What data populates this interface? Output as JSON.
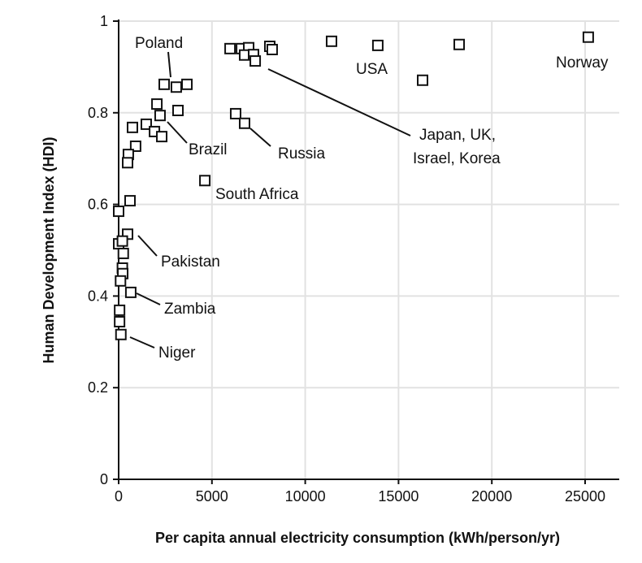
{
  "chart_data": {
    "type": "scatter",
    "title": "",
    "xlabel": "Per capita annual electricity consumption (kWh/person/yr)",
    "ylabel": "Human Development Index (HDI)",
    "xlim": [
      0,
      27000
    ],
    "ylim": [
      0,
      1
    ],
    "xticks": [
      "0",
      "5000",
      "10000",
      "15000",
      "20000",
      "25000"
    ],
    "yticks": [
      "0",
      "0.2",
      "0.4",
      "0.6",
      "0.8",
      "1"
    ],
    "grid": true,
    "marker": "open-square",
    "points": [
      [
        2440,
        0.862
      ],
      [
        3090,
        0.856
      ],
      [
        3660,
        0.862
      ],
      [
        2050,
        0.819
      ],
      [
        3180,
        0.805
      ],
      [
        2220,
        0.794
      ],
      [
        740,
        0.768
      ],
      [
        1480,
        0.775
      ],
      [
        1920,
        0.759
      ],
      [
        2310,
        0.748
      ],
      [
        910,
        0.727
      ],
      [
        520,
        0.709
      ],
      [
        480,
        0.691
      ],
      [
        610,
        0.608
      ],
      [
        0,
        0.585
      ],
      [
        480,
        0.535
      ],
      [
        0,
        0.514
      ],
      [
        200,
        0.52
      ],
      [
        250,
        0.493
      ],
      [
        200,
        0.461
      ],
      [
        220,
        0.449
      ],
      [
        100,
        0.433
      ],
      [
        650,
        0.408
      ],
      [
        50,
        0.369
      ],
      [
        50,
        0.344
      ],
      [
        120,
        0.316
      ],
      [
        5970,
        0.94
      ],
      [
        6580,
        0.94
      ],
      [
        6970,
        0.942
      ],
      [
        6750,
        0.926
      ],
      [
        7230,
        0.927
      ],
      [
        7320,
        0.913
      ],
      [
        8100,
        0.945
      ],
      [
        8230,
        0.938
      ],
      [
        6270,
        0.798
      ],
      [
        6750,
        0.777
      ],
      [
        4620,
        0.652
      ],
      [
        11410,
        0.956
      ],
      [
        13890,
        0.947
      ],
      [
        16290,
        0.871
      ],
      [
        18250,
        0.949
      ],
      [
        25170,
        0.965
      ]
    ],
    "annotations": [
      {
        "text": "Poland"
      },
      {
        "text": "Brazil"
      },
      {
        "text": "Russia"
      },
      {
        "text": "South Africa"
      },
      {
        "text": "Japan, UK,"
      },
      {
        "text": "Israel, Korea"
      },
      {
        "text": "USA"
      },
      {
        "text": "Norway"
      },
      {
        "text": "Pakistan"
      },
      {
        "text": "Zambia"
      },
      {
        "text": "Niger"
      }
    ]
  }
}
